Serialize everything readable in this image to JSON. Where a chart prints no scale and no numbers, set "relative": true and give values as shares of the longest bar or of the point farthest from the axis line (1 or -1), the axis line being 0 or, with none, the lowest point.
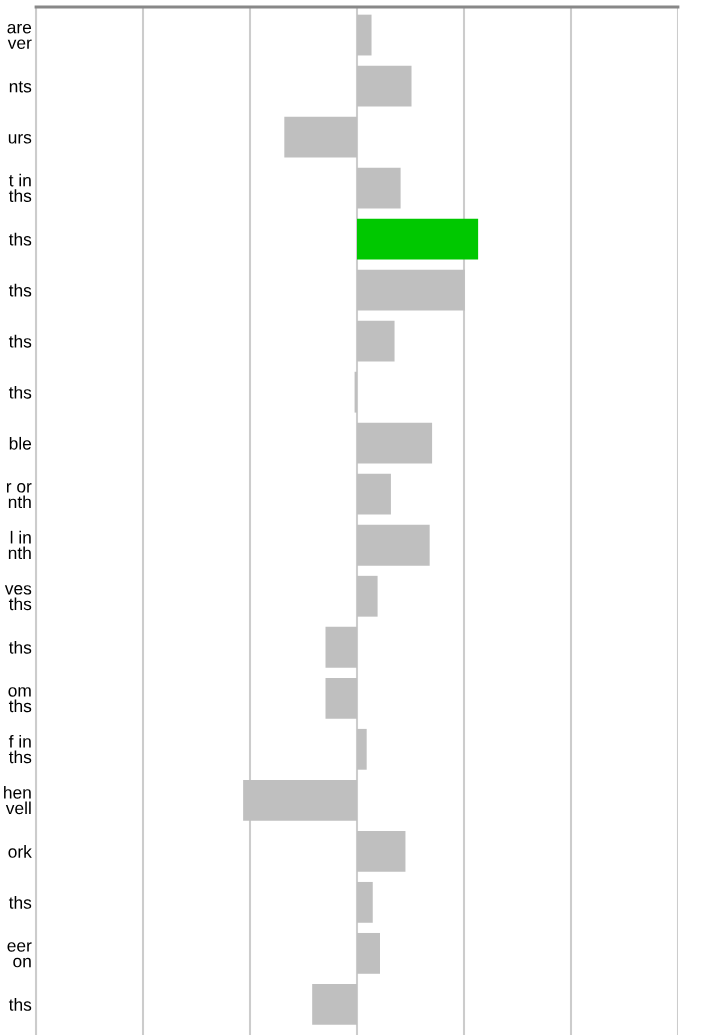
{
  "chart_data": {
    "type": "bar",
    "orientation": "horizontal",
    "relative": true,
    "grid": "x",
    "categories": [
      "are\nver",
      "nts",
      "urs",
      "t in\nths",
      "ths",
      "ths",
      "ths",
      "ths",
      "ble",
      "r or\nnth",
      "l in\nnth",
      "ves\nths",
      "ths",
      "om\nths",
      "f in\nths",
      "hen\nvell",
      "ork",
      "ths",
      "eer\non",
      "ths"
    ],
    "values": [
      0.12,
      0.45,
      -0.6,
      0.36,
      1,
      0.89,
      0.31,
      -0.02,
      0.62,
      0.28,
      0.6,
      0.17,
      -0.26,
      -0.26,
      0.08,
      -0.94,
      0.4,
      0.13,
      0.19,
      -0.37
    ],
    "colors": [
      "#bfbfbf",
      "#bfbfbf",
      "#bfbfbf",
      "#bfbfbf",
      "#00c800",
      "#bfbfbf",
      "#bfbfbf",
      "#bfbfbf",
      "#bfbfbf",
      "#bfbfbf",
      "#bfbfbf",
      "#bfbfbf",
      "#bfbfbf",
      "#bfbfbf",
      "#bfbfbf",
      "#bfbfbf",
      "#bfbfbf",
      "#bfbfbf",
      "#bfbfbf",
      "#bfbfbf"
    ]
  }
}
